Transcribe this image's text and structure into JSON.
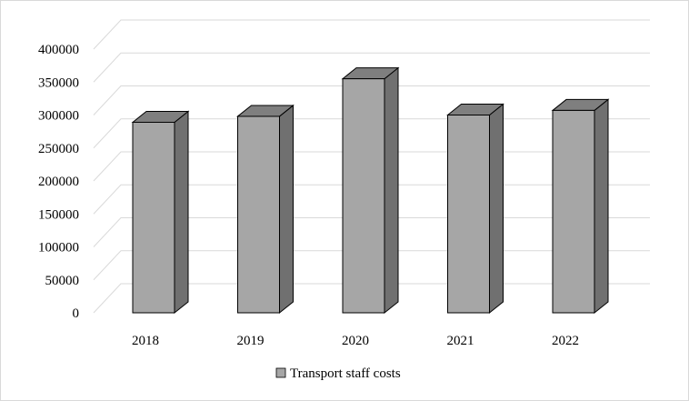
{
  "chart_data": {
    "type": "bar",
    "style": "3d-column",
    "categories": [
      "2018",
      "2019",
      "2020",
      "2021",
      "2022"
    ],
    "series": [
      {
        "name": "Transport staff costs",
        "values": [
          289000,
          298000,
          355000,
          300000,
          307000
        ]
      }
    ],
    "y_ticks": [
      "0",
      "50000",
      "100000",
      "150000",
      "200000",
      "250000",
      "300000",
      "350000",
      "400000"
    ],
    "ylim": [
      0,
      400000
    ],
    "grid": true,
    "legend_position": "bottom",
    "colors": {
      "bar_front": "#a6a6a6",
      "bar_side": "#707070",
      "bar_top": "#7f7f7f",
      "bar_stroke": "#000000",
      "gridline": "#d9d9d9"
    }
  }
}
